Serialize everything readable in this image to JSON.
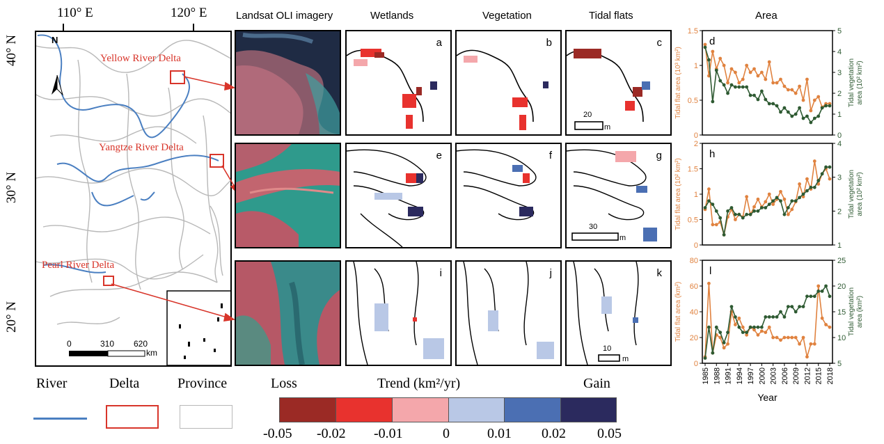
{
  "map": {
    "lon_labels": [
      "110° E",
      "120° E"
    ],
    "lat_labels": [
      "40° N",
      "30° N",
      "20° N"
    ],
    "delta_labels": [
      "Yellow River Delta",
      "Yangtze River Delta",
      "Pearl River Delta"
    ],
    "scale_ticks": [
      "0",
      "310",
      "620"
    ],
    "scale_unit": "km",
    "north": "N"
  },
  "columns": [
    "Landsat OLI imagery",
    "Wetlands",
    "Vegetation",
    "Tidal flats",
    "Area"
  ],
  "panel_letters": {
    "row1": [
      "a",
      "b",
      "c",
      "d"
    ],
    "row2": [
      "e",
      "f",
      "g",
      "h"
    ],
    "row3": [
      "i",
      "j",
      "k",
      "l"
    ]
  },
  "scalebars": [
    {
      "value": "20",
      "unit": "m"
    },
    {
      "value": "30",
      "unit": "m"
    },
    {
      "value": "10",
      "unit": "m"
    }
  ],
  "legend": {
    "river": "River",
    "delta": "Delta",
    "province": "Province",
    "loss": "Loss",
    "gain": "Gain",
    "trend": "Trend (km²/yr)",
    "ticks": [
      "-0.05",
      "-0.02",
      "-0.01",
      "0",
      "0.01",
      "0.02",
      "0.05"
    ]
  },
  "colors": {
    "colorbar": [
      "#9b2a25",
      "#e8322e",
      "#f4a7ab",
      "#b9c8e6",
      "#4b6fb3",
      "#2b2a5e"
    ],
    "tidal": "#e0823f",
    "vegetation": "#2e5a32",
    "river": "#4a7fc1",
    "delta_box": "#d8352a",
    "province": "#b8b8b8"
  },
  "chart_data": [
    {
      "type": "line",
      "panel": "d",
      "x": [
        1985,
        1986,
        1987,
        1988,
        1989,
        1990,
        1991,
        1992,
        1993,
        1994,
        1995,
        1996,
        1997,
        1998,
        1999,
        2000,
        2001,
        2002,
        2003,
        2004,
        2005,
        2006,
        2007,
        2008,
        2009,
        2010,
        2011,
        2012,
        2013,
        2014,
        2015,
        2016,
        2017,
        2018
      ],
      "series": [
        {
          "name": "Tidal flat",
          "axis": "left",
          "values": [
            1.3,
            0.85,
            1.2,
            0.95,
            1.1,
            1.0,
            0.75,
            0.95,
            0.9,
            0.75,
            0.8,
            1.0,
            0.9,
            0.95,
            0.85,
            0.9,
            0.8,
            1.05,
            0.75,
            0.75,
            0.8,
            0.7,
            0.65,
            0.65,
            0.6,
            0.7,
            0.5,
            0.8,
            0.35,
            0.5,
            0.55,
            0.4,
            0.45,
            0.45
          ]
        },
        {
          "name": "Tidal vegetation",
          "axis": "right",
          "values": [
            4.2,
            3.6,
            1.6,
            3.1,
            2.6,
            2.4,
            2.0,
            2.4,
            2.3,
            2.3,
            2.3,
            2.3,
            1.9,
            1.9,
            1.7,
            2.1,
            1.7,
            1.5,
            1.5,
            1.4,
            1.1,
            1.3,
            1.1,
            0.9,
            1.0,
            1.3,
            0.8,
            0.9,
            0.6,
            0.8,
            0.9,
            1.3,
            1.4,
            1.4
          ]
        }
      ],
      "ylabel_left": "Tidal flat area (10³ km²)",
      "ylabel_right": "Tidal vegetation area (10² km²)",
      "ylim_left": [
        0,
        1.5
      ],
      "ylim_right": [
        0,
        5
      ],
      "yticks_left": [
        "0",
        "0.5",
        "1",
        "1.5"
      ],
      "yticks_right": [
        "0",
        "1",
        "2",
        "3",
        "4",
        "5"
      ]
    },
    {
      "type": "line",
      "panel": "h",
      "x": [
        1985,
        1986,
        1987,
        1988,
        1989,
        1990,
        1991,
        1992,
        1993,
        1994,
        1995,
        1996,
        1997,
        1998,
        1999,
        2000,
        2001,
        2002,
        2003,
        2004,
        2005,
        2006,
        2007,
        2008,
        2009,
        2010,
        2011,
        2012,
        2013,
        2014,
        2015,
        2016,
        2017,
        2018
      ],
      "series": [
        {
          "name": "Tidal flat",
          "axis": "left",
          "values": [
            0.7,
            1.1,
            0.4,
            0.4,
            0.45,
            0.2,
            0.55,
            0.7,
            0.5,
            0.6,
            0.55,
            0.95,
            0.6,
            0.75,
            0.9,
            0.75,
            0.85,
            1.0,
            0.8,
            0.9,
            1.05,
            0.9,
            0.6,
            0.7,
            0.85,
            1.2,
            0.95,
            1.3,
            1.1,
            1.65,
            1.2,
            1.4,
            1.5,
            1.3
          ]
        },
        {
          "name": "Tidal vegetation",
          "axis": "right",
          "values": [
            2.1,
            2.3,
            2.2,
            2.0,
            1.8,
            1.3,
            2.0,
            2.1,
            1.9,
            1.9,
            1.8,
            1.9,
            1.9,
            2.0,
            2.0,
            2.1,
            2.1,
            2.2,
            2.3,
            2.4,
            2.3,
            1.9,
            2.1,
            2.3,
            2.3,
            2.4,
            2.5,
            2.6,
            2.7,
            2.7,
            2.9,
            3.1,
            3.3,
            3.3
          ]
        }
      ],
      "ylabel_left": "Tidal flat area (10² km²)",
      "ylabel_right": "Tidal vegetation area (10² km²)",
      "ylim_left": [
        0,
        2
      ],
      "ylim_right": [
        1,
        4
      ],
      "yticks_left": [
        "0",
        "0.5",
        "1",
        "1.5",
        "2"
      ],
      "yticks_right": [
        "1",
        "2",
        "3",
        "4"
      ]
    },
    {
      "type": "line",
      "panel": "l",
      "x": [
        1985,
        1986,
        1987,
        1988,
        1989,
        1990,
        1991,
        1992,
        1993,
        1994,
        1995,
        1996,
        1997,
        1998,
        1999,
        2000,
        2001,
        2002,
        2003,
        2004,
        2005,
        2006,
        2007,
        2008,
        2009,
        2010,
        2011,
        2012,
        2013,
        2014,
        2015,
        2016,
        2017,
        2018
      ],
      "series": [
        {
          "name": "Tidal flat",
          "axis": "left",
          "values": [
            5,
            62,
            8,
            22,
            20,
            12,
            15,
            40,
            30,
            35,
            28,
            22,
            28,
            26,
            22,
            25,
            24,
            28,
            20,
            20,
            18,
            20,
            20,
            20,
            20,
            15,
            20,
            5,
            15,
            15,
            60,
            35,
            30,
            28
          ]
        },
        {
          "name": "Tidal vegetation",
          "axis": "right",
          "values": [
            6,
            12,
            7,
            12,
            11,
            9,
            11,
            16,
            14,
            12,
            11,
            11,
            12,
            12,
            12,
            12,
            14,
            14,
            14,
            14,
            15,
            14,
            16,
            16,
            15,
            16,
            16,
            18,
            18,
            18,
            19,
            19,
            20,
            18
          ]
        }
      ],
      "xlabel": "Year",
      "xticks": [
        "1985",
        "1988",
        "1991",
        "1994",
        "1997",
        "2000",
        "2003",
        "2006",
        "2009",
        "2012",
        "2015",
        "2018"
      ],
      "ylabel_left": "Tidal flat area (km²)",
      "ylabel_right": "Tidal vegetation area (km²)",
      "ylim_left": [
        0,
        80
      ],
      "ylim_right": [
        5,
        25
      ],
      "yticks_left": [
        "0",
        "20",
        "40",
        "60",
        "80"
      ],
      "yticks_right": [
        "5",
        "10",
        "15",
        "20",
        "25"
      ]
    }
  ]
}
